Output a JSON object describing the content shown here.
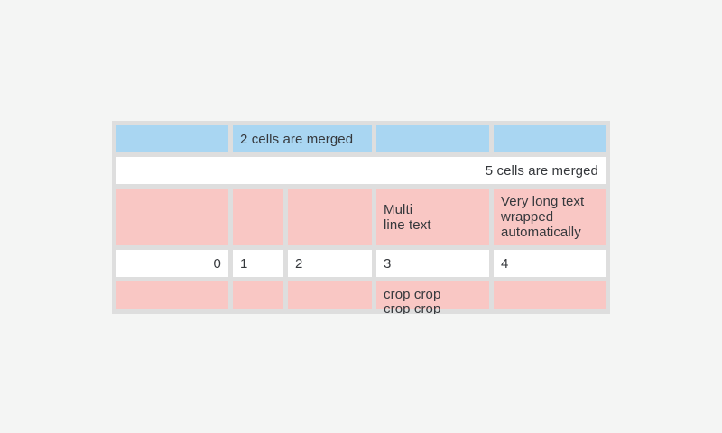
{
  "page": {
    "background_color": "#f4f5f4"
  },
  "table": {
    "colors": {
      "grid_background": "#dedede",
      "header_cell_blue": "#a9d6f2",
      "highlight_cell_pink": "#f9c7c4",
      "default_cell_white": "#ffffff",
      "text": "#35383c"
    },
    "rows": [
      {
        "type": "header",
        "cells": [
          {
            "text": ""
          },
          {
            "text": "2 cells are merged",
            "span": 2
          },
          {
            "text": ""
          },
          {
            "text": ""
          }
        ]
      },
      {
        "type": "full-merged",
        "cells": [
          {
            "text": "5 cells are merged",
            "span": 5,
            "align": "right"
          }
        ]
      },
      {
        "type": "highlight",
        "cells": [
          {
            "text": ""
          },
          {
            "text": ""
          },
          {
            "text": ""
          },
          {
            "text": "Multi\nline text"
          },
          {
            "text": "Very long text wrapped automatically"
          }
        ]
      },
      {
        "type": "numbers",
        "cells": [
          {
            "text": "0",
            "align": "right"
          },
          {
            "text": "1"
          },
          {
            "text": "2"
          },
          {
            "text": "3"
          },
          {
            "text": "4"
          }
        ]
      },
      {
        "type": "highlight-cropped",
        "cells": [
          {
            "text": ""
          },
          {
            "text": ""
          },
          {
            "text": ""
          },
          {
            "text": "crop crop\ncrop crop"
          },
          {
            "text": ""
          }
        ]
      }
    ]
  }
}
